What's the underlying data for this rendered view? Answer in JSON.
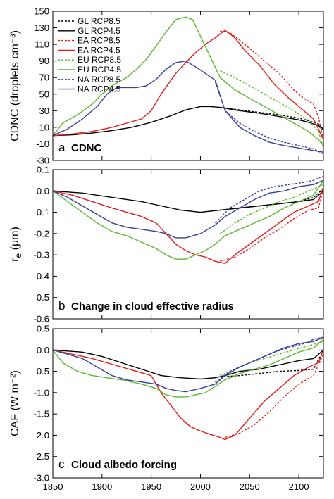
{
  "colors": {
    "GL": "#000000",
    "EA": "#e41a1c",
    "EU": "#5cb82e",
    "NA": "#3a3f9a"
  },
  "legend": [
    {
      "label": "GL RCP8.5",
      "color": "#000000",
      "dashed": true
    },
    {
      "label": "GL RCP4.5",
      "color": "#000000",
      "dashed": false
    },
    {
      "label": "EA RCP8.5",
      "color": "#e41a1c",
      "dashed": true
    },
    {
      "label": "EA RCP4.5",
      "color": "#e41a1c",
      "dashed": false
    },
    {
      "label": "EU RCP8.5",
      "color": "#5cb82e",
      "dashed": true
    },
    {
      "label": "EU RCP4.5",
      "color": "#5cb82e",
      "dashed": false
    },
    {
      "label": "NA RCP8.5",
      "color": "#3a3f9a",
      "dashed": true
    },
    {
      "label": "NA RCP4.5",
      "color": "#3a3f9a",
      "dashed": false
    }
  ],
  "panels": [
    {
      "letter": "a",
      "title": "CDNC"
    },
    {
      "letter": "b",
      "title": "Change in cloud effective radius"
    },
    {
      "letter": "c",
      "title": "Cloud albedo forcing"
    }
  ],
  "chart_data": [
    {
      "type": "line",
      "title": "CDNC",
      "ylabel": "CDNC (droplets cm⁻³)",
      "xlim": [
        1850,
        2125
      ],
      "ylim": [
        -30,
        150
      ],
      "xticks": [
        1850,
        1900,
        1950,
        2000,
        2050,
        2100
      ],
      "yticks": [
        -30,
        -10,
        10,
        30,
        50,
        70,
        90,
        110,
        130,
        150
      ],
      "series": [
        {
          "name": "GL RCP4.5",
          "region": "GL",
          "dashed": false,
          "x": [
            1850,
            1870,
            1890,
            1910,
            1930,
            1950,
            1970,
            1985,
            2000,
            2010,
            2020,
            2030,
            2040,
            2060,
            2080,
            2100,
            2110,
            2120,
            2125
          ],
          "y": [
            0,
            1,
            3,
            6,
            10,
            16,
            24,
            31,
            35,
            35,
            34,
            32,
            30,
            27,
            23,
            19,
            16,
            12,
            8
          ]
        },
        {
          "name": "GL RCP8.5",
          "region": "GL",
          "dashed": true,
          "x": [
            2020,
            2040,
            2060,
            2080,
            2100,
            2110,
            2120,
            2125
          ],
          "y": [
            34,
            31,
            28,
            25,
            21,
            18,
            14,
            6
          ]
        },
        {
          "name": "EA RCP4.5",
          "region": "EA",
          "dashed": false,
          "x": [
            1850,
            1870,
            1890,
            1910,
            1925,
            1940,
            1950,
            1960,
            1975,
            1985,
            1995,
            2005,
            2015,
            2025,
            2035,
            2045,
            2060,
            2075,
            2090,
            2105,
            2115,
            2120,
            2125
          ],
          "y": [
            0,
            2,
            5,
            10,
            15,
            20,
            30,
            50,
            75,
            88,
            100,
            110,
            118,
            127,
            118,
            103,
            85,
            62,
            45,
            30,
            20,
            8,
            -5
          ]
        },
        {
          "name": "EA RCP8.5",
          "region": "EA",
          "dashed": true,
          "x": [
            2020,
            2030,
            2040,
            2050,
            2065,
            2080,
            2095,
            2105,
            2115,
            2120,
            2125
          ],
          "y": [
            126,
            124,
            115,
            105,
            90,
            75,
            55,
            45,
            38,
            22,
            -5
          ]
        },
        {
          "name": "EU RCP4.5",
          "region": "EU",
          "dashed": false,
          "x": [
            1850,
            1860,
            1875,
            1890,
            1900,
            1910,
            1925,
            1935,
            1945,
            1955,
            1965,
            1975,
            1985,
            1992,
            2000,
            2010,
            2020,
            2035,
            2050,
            2065,
            2080,
            2095,
            2110,
            2120,
            2125
          ],
          "y": [
            0,
            15,
            25,
            38,
            50,
            60,
            70,
            80,
            92,
            108,
            125,
            140,
            143,
            140,
            120,
            95,
            70,
            55,
            45,
            35,
            25,
            15,
            5,
            -5,
            -12
          ]
        },
        {
          "name": "EU RCP8.5",
          "region": "EU",
          "dashed": true,
          "x": [
            2020,
            2035,
            2050,
            2065,
            2080,
            2095,
            2110,
            2120,
            2125
          ],
          "y": [
            78,
            70,
            60,
            50,
            40,
            30,
            18,
            5,
            -15
          ]
        },
        {
          "name": "NA RCP4.5",
          "region": "NA",
          "dashed": false,
          "x": [
            1850,
            1865,
            1880,
            1895,
            1905,
            1915,
            1925,
            1935,
            1945,
            1955,
            1965,
            1975,
            1985,
            1995,
            2005,
            2015,
            2025,
            2040,
            2055,
            2070,
            2085,
            2100,
            2115,
            2125
          ],
          "y": [
            0,
            8,
            20,
            35,
            50,
            58,
            58,
            58,
            60,
            68,
            80,
            88,
            90,
            83,
            75,
            67,
            30,
            10,
            0,
            -8,
            -12,
            -15,
            -18,
            -20
          ]
        },
        {
          "name": "NA RCP8.5",
          "region": "NA",
          "dashed": true,
          "x": [
            2015,
            2025,
            2040,
            2055,
            2070,
            2085,
            2100,
            2115,
            2125
          ],
          "y": [
            65,
            30,
            15,
            5,
            -3,
            -8,
            -12,
            -16,
            -22
          ]
        }
      ]
    },
    {
      "type": "line",
      "title": "Change in cloud effective radius",
      "ylabel": "r_e (μm)",
      "xlim": [
        1850,
        2125
      ],
      "ylim": [
        -0.6,
        0.1
      ],
      "xticks": [
        1850,
        1900,
        1950,
        2000,
        2050,
        2100
      ],
      "yticks": [
        -0.6,
        -0.5,
        -0.4,
        -0.3,
        -0.2,
        -0.1,
        0.0,
        0.1
      ],
      "series": [
        {
          "name": "GL RCP4.5",
          "region": "GL",
          "dashed": false,
          "x": [
            1850,
            1880,
            1910,
            1940,
            1960,
            1980,
            2000,
            2020,
            2040,
            2060,
            2080,
            2100,
            2115,
            2125
          ],
          "y": [
            0,
            -0.01,
            -0.03,
            -0.05,
            -0.07,
            -0.09,
            -0.1,
            -0.09,
            -0.08,
            -0.07,
            -0.06,
            -0.05,
            -0.04,
            0.0
          ]
        },
        {
          "name": "GL RCP8.5",
          "region": "GL",
          "dashed": true,
          "x": [
            2020,
            2040,
            2060,
            2080,
            2100,
            2115,
            2125
          ],
          "y": [
            -0.09,
            -0.08,
            -0.07,
            -0.06,
            -0.05,
            -0.03,
            0.01
          ]
        },
        {
          "name": "EA RCP4.5",
          "region": "EA",
          "dashed": false,
          "x": [
            1850,
            1870,
            1890,
            1910,
            1925,
            1940,
            1955,
            1965,
            1975,
            1985,
            1995,
            2005,
            2015,
            2025,
            2035,
            2050,
            2065,
            2080,
            2095,
            2110,
            2120,
            2125
          ],
          "y": [
            0,
            -0.02,
            -0.05,
            -0.08,
            -0.1,
            -0.12,
            -0.15,
            -0.2,
            -0.25,
            -0.28,
            -0.3,
            -0.31,
            -0.33,
            -0.34,
            -0.3,
            -0.25,
            -0.2,
            -0.15,
            -0.1,
            -0.07,
            -0.05,
            0.02
          ]
        },
        {
          "name": "EA RCP8.5",
          "region": "EA",
          "dashed": true,
          "x": [
            2020,
            2035,
            2050,
            2065,
            2080,
            2095,
            2110,
            2120,
            2125
          ],
          "y": [
            -0.33,
            -0.31,
            -0.27,
            -0.22,
            -0.18,
            -0.13,
            -0.09,
            -0.08,
            0.01
          ]
        },
        {
          "name": "EU RCP4.5",
          "region": "EU",
          "dashed": false,
          "x": [
            1850,
            1865,
            1880,
            1895,
            1910,
            1925,
            1940,
            1955,
            1965,
            1975,
            1985,
            1995,
            2005,
            2015,
            2025,
            2040,
            2055,
            2070,
            2085,
            2100,
            2115,
            2125
          ],
          "y": [
            0,
            -0.05,
            -0.1,
            -0.15,
            -0.19,
            -0.21,
            -0.24,
            -0.27,
            -0.3,
            -0.32,
            -0.32,
            -0.3,
            -0.28,
            -0.25,
            -0.21,
            -0.18,
            -0.15,
            -0.12,
            -0.08,
            -0.05,
            -0.02,
            0.05
          ]
        },
        {
          "name": "EU RCP8.5",
          "region": "EU",
          "dashed": true,
          "x": [
            2020,
            2035,
            2050,
            2065,
            2080,
            2095,
            2110,
            2125
          ],
          "y": [
            -0.2,
            -0.15,
            -0.11,
            -0.08,
            -0.05,
            -0.03,
            0.0,
            0.03
          ]
        },
        {
          "name": "NA RCP4.5",
          "region": "NA",
          "dashed": false,
          "x": [
            1850,
            1865,
            1880,
            1895,
            1910,
            1925,
            1940,
            1955,
            1965,
            1975,
            1985,
            2000,
            2015,
            2025,
            2040,
            2055,
            2070,
            2085,
            2100,
            2115,
            2125
          ],
          "y": [
            0,
            -0.03,
            -0.07,
            -0.11,
            -0.15,
            -0.17,
            -0.18,
            -0.19,
            -0.2,
            -0.22,
            -0.22,
            -0.2,
            -0.16,
            -0.12,
            -0.08,
            -0.04,
            -0.01,
            0.0,
            0.02,
            0.03,
            0.05
          ]
        },
        {
          "name": "NA RCP8.5",
          "region": "NA",
          "dashed": true,
          "x": [
            2015,
            2030,
            2045,
            2060,
            2075,
            2090,
            2105,
            2115,
            2125
          ],
          "y": [
            -0.15,
            -0.08,
            -0.04,
            0.0,
            0.02,
            0.03,
            0.04,
            0.05,
            0.07
          ]
        }
      ]
    },
    {
      "type": "line",
      "title": "Cloud albedo forcing",
      "ylabel": "CAF (W m⁻²)",
      "xlim": [
        1850,
        2125
      ],
      "ylim": [
        -3.0,
        0.5
      ],
      "xticks": [
        1850,
        1900,
        1950,
        2000,
        2050,
        2100
      ],
      "yticks": [
        -3.0,
        -2.5,
        -2.0,
        -1.5,
        -1.0,
        -0.5,
        0.0,
        0.5
      ],
      "series": [
        {
          "name": "GL RCP4.5",
          "region": "GL",
          "dashed": false,
          "x": [
            1850,
            1880,
            1900,
            1920,
            1940,
            1960,
            1980,
            2000,
            2015,
            2025,
            2040,
            2060,
            2080,
            2100,
            2115,
            2125
          ],
          "y": [
            0,
            -0.05,
            -0.15,
            -0.3,
            -0.45,
            -0.6,
            -0.65,
            -0.68,
            -0.65,
            -0.6,
            -0.5,
            -0.45,
            -0.35,
            -0.25,
            -0.2,
            0.0
          ]
        },
        {
          "name": "GL RCP8.5",
          "region": "GL",
          "dashed": true,
          "x": [
            2020,
            2040,
            2060,
            2080,
            2100,
            2115,
            2125
          ],
          "y": [
            -0.63,
            -0.6,
            -0.55,
            -0.5,
            -0.48,
            -0.45,
            0.0
          ]
        },
        {
          "name": "EA RCP4.5",
          "region": "EA",
          "dashed": false,
          "x": [
            1850,
            1870,
            1890,
            1905,
            1920,
            1935,
            1950,
            1960,
            1970,
            1980,
            1990,
            2000,
            2010,
            2020,
            2025,
            2035,
            2050,
            2065,
            2080,
            2095,
            2110,
            2120,
            2125
          ],
          "y": [
            0,
            -0.1,
            -0.2,
            -0.3,
            -0.4,
            -0.5,
            -0.6,
            -1.0,
            -1.3,
            -1.6,
            -1.8,
            -1.9,
            -1.98,
            -2.05,
            -2.1,
            -2.0,
            -1.6,
            -1.2,
            -0.9,
            -0.6,
            -0.4,
            -0.3,
            0.0
          ]
        },
        {
          "name": "EA RCP8.5",
          "region": "EA",
          "dashed": true,
          "x": [
            2025,
            2040,
            2055,
            2070,
            2085,
            2100,
            2115,
            2125
          ],
          "y": [
            -2.05,
            -1.95,
            -1.75,
            -1.45,
            -1.1,
            -0.8,
            -0.6,
            -0.1
          ]
        },
        {
          "name": "EU RCP4.5",
          "region": "EU",
          "dashed": false,
          "x": [
            1850,
            1860,
            1875,
            1890,
            1905,
            1920,
            1940,
            1955,
            1965,
            1975,
            1985,
            1995,
            2005,
            2015,
            2025,
            2040,
            2055,
            2070,
            2085,
            2100,
            2115,
            2125
          ],
          "y": [
            0,
            -0.3,
            -0.5,
            -0.6,
            -0.65,
            -0.7,
            -0.8,
            -0.9,
            -1.05,
            -1.1,
            -1.1,
            -1.05,
            -1.0,
            -0.85,
            -0.7,
            -0.55,
            -0.45,
            -0.35,
            -0.2,
            -0.05,
            0.05,
            0.25
          ]
        },
        {
          "name": "EU RCP8.5",
          "region": "EU",
          "dashed": true,
          "x": [
            2020,
            2035,
            2050,
            2065,
            2080,
            2095,
            2110,
            2125
          ],
          "y": [
            -0.6,
            -0.45,
            -0.3,
            -0.2,
            -0.1,
            0.0,
            0.1,
            0.2
          ]
        },
        {
          "name": "NA RCP4.5",
          "region": "NA",
          "dashed": false,
          "x": [
            1850,
            1865,
            1880,
            1895,
            1910,
            1925,
            1940,
            1955,
            1965,
            1975,
            1985,
            2000,
            2015,
            2025,
            2040,
            2055,
            2070,
            2085,
            2100,
            2115,
            2125
          ],
          "y": [
            0,
            -0.1,
            -0.2,
            -0.4,
            -0.6,
            -0.7,
            -0.75,
            -0.8,
            -0.9,
            -0.95,
            -0.98,
            -0.9,
            -0.8,
            -0.6,
            -0.4,
            -0.25,
            -0.1,
            0.05,
            0.15,
            0.2,
            0.3
          ]
        },
        {
          "name": "NA RCP8.5",
          "region": "NA",
          "dashed": true,
          "x": [
            2015,
            2030,
            2045,
            2060,
            2075,
            2090,
            2105,
            2115,
            2125
          ],
          "y": [
            -0.75,
            -0.5,
            -0.35,
            -0.2,
            -0.05,
            0.05,
            0.15,
            0.25,
            0.3
          ]
        }
      ]
    }
  ]
}
